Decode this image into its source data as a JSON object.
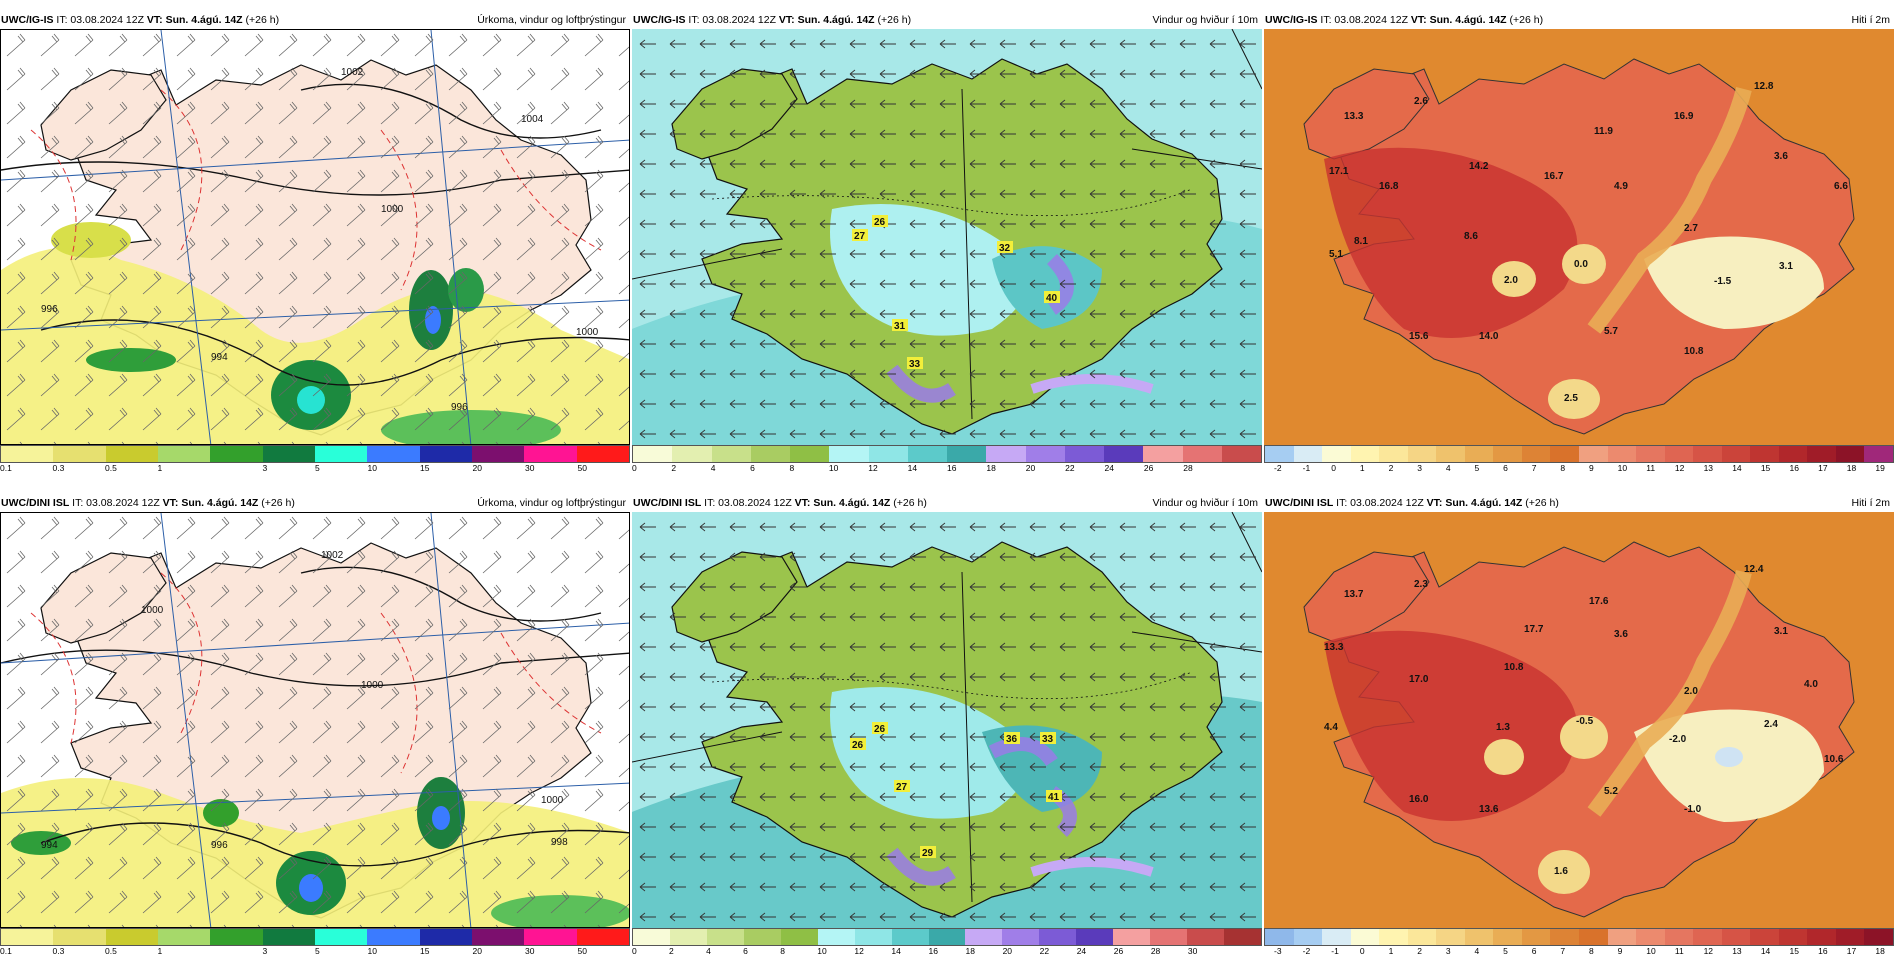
{
  "panels": [
    {
      "id": "p1",
      "kind": "precip",
      "model": "UWC/IG-IS",
      "it": "03.08.2024 12Z",
      "vt": "Sun. 4.ágú. 14Z",
      "lead": "(+26 h)",
      "title": "Úrkoma, vindur og loftþrýstingur",
      "isobars": [
        "1002",
        "1000",
        "1004",
        "996",
        "994",
        "996",
        "1000"
      ],
      "scale": {
        "labels": [
          "0.1",
          "0.3",
          "0.5",
          "1",
          "3",
          "5",
          "10",
          "15",
          "20",
          "30",
          "50"
        ],
        "colors": [
          "#f6f39a",
          "#e6e070",
          "#c9cb2e",
          "#a6d96a",
          "#33a02c",
          "#117a3f",
          "#29ffd9",
          "#3b7bff",
          "#1e2aa8",
          "#7c0f6e",
          "#ff1493",
          "#ff1a1a"
        ]
      }
    },
    {
      "id": "p2",
      "kind": "wind",
      "model": "UWC/IG-IS",
      "it": "03.08.2024 12Z",
      "vt": "Sun. 4.ágú. 14Z",
      "lead": "(+26 h)",
      "title": "Vindur og hviður í 10m",
      "gusts": [
        "26",
        "27",
        "32",
        "31",
        "33",
        "40"
      ],
      "scale": {
        "labels": [
          "0",
          "2",
          "4",
          "6",
          "8",
          "10",
          "12",
          "14",
          "16",
          "18",
          "20",
          "22",
          "24",
          "26",
          "28"
        ],
        "colors": [
          "#f8fbd8",
          "#e3efb0",
          "#c8e08a",
          "#a9cc62",
          "#8fbf45",
          "#b4f5f5",
          "#8fe6e6",
          "#5ccaca",
          "#3aa9a9",
          "#c6a9f5",
          "#a07ee8",
          "#7c5bd6",
          "#5a3bbb",
          "#f4a0a0",
          "#e57373",
          "#c94c4c"
        ]
      }
    },
    {
      "id": "p3",
      "kind": "temp",
      "model": "UWC/IG-IS",
      "it": "03.08.2024 12Z",
      "vt": "Sun. 4.ágú. 14Z",
      "lead": "(+26 h)",
      "title": "Hiti í 2m",
      "temps": [
        "13.3",
        "2.6",
        "12.8",
        "17.1",
        "14.2",
        "16.9",
        "11.9",
        "16.7",
        "16.8",
        "4.9",
        "3.6",
        "6.6",
        "8.1",
        "8.6",
        "2.7",
        "5.1",
        "2.0",
        "0.0",
        "3.1",
        "-1.5",
        "15.6",
        "14.0",
        "5.7",
        "10.8",
        "2.5"
      ],
      "scale": {
        "labels": [
          "-2",
          "-1",
          "0",
          "1",
          "2",
          "3",
          "4",
          "5",
          "6",
          "7",
          "8",
          "9",
          "10",
          "11",
          "12",
          "13",
          "14",
          "15",
          "16",
          "17",
          "18",
          "19"
        ],
        "colors": [
          "#a6cdf2",
          "#d9ecf5",
          "#fbfbd5",
          "#fff4b0",
          "#fbe79a",
          "#f5d585",
          "#efc26c",
          "#e9ad55",
          "#e39843",
          "#dd8335",
          "#d9722b",
          "#f0a080",
          "#ec8a6e",
          "#e57660",
          "#df6552",
          "#d65446",
          "#cb443a",
          "#bf3531",
          "#b1272b",
          "#a01c28",
          "#8c1327",
          "#a0287a"
        ]
      }
    },
    {
      "id": "p4",
      "kind": "precip",
      "model": "UWC/DINI ISL",
      "it": "03.08.2024 12Z",
      "vt": "Sun. 4.ágú. 14Z",
      "lead": "(+26 h)",
      "title": "Úrkoma, vindur og loftþrýstingur",
      "isobars": [
        "1002",
        "1000",
        "1000",
        "994",
        "996",
        "998",
        "1000"
      ],
      "scale": {
        "labels": [
          "0.1",
          "0.3",
          "0.5",
          "1",
          "3",
          "5",
          "10",
          "15",
          "20",
          "30",
          "50"
        ],
        "colors": [
          "#f6f39a",
          "#e6e070",
          "#c9cb2e",
          "#a6d96a",
          "#33a02c",
          "#117a3f",
          "#29ffd9",
          "#3b7bff",
          "#1e2aa8",
          "#7c0f6e",
          "#ff1493",
          "#ff1a1a"
        ]
      }
    },
    {
      "id": "p5",
      "kind": "wind",
      "model": "UWC/DINI ISL",
      "it": "03.08.2024 12Z",
      "vt": "Sun. 4.ágú. 14Z",
      "lead": "(+26 h)",
      "title": "Vindur og hviður í 10m",
      "gusts": [
        "26",
        "26",
        "36",
        "33",
        "27",
        "41",
        "29"
      ],
      "scale": {
        "labels": [
          "0",
          "2",
          "4",
          "6",
          "8",
          "10",
          "12",
          "14",
          "16",
          "18",
          "20",
          "22",
          "24",
          "26",
          "28",
          "30"
        ],
        "colors": [
          "#f8fbd8",
          "#e3efb0",
          "#c8e08a",
          "#a9cc62",
          "#8fbf45",
          "#b4f5f5",
          "#8fe6e6",
          "#5ccaca",
          "#3aa9a9",
          "#c6a9f5",
          "#a07ee8",
          "#7c5bd6",
          "#5a3bbb",
          "#f4a0a0",
          "#e57373",
          "#c94c4c",
          "#a63232"
        ]
      }
    },
    {
      "id": "p6",
      "kind": "temp",
      "model": "UWC/DINI ISL",
      "it": "03.08.2024 12Z",
      "vt": "Sun. 4.ágú. 14Z",
      "lead": "(+26 h)",
      "title": "Hiti í 2m",
      "temps": [
        "13.7",
        "2.3",
        "12.4",
        "17.6",
        "13.3",
        "17.7",
        "3.6",
        "3.1",
        "17.0",
        "10.8",
        "2.0",
        "4.0",
        "4.4",
        "1.3",
        "-0.5",
        "2.4",
        "-2.0",
        "10.6",
        "16.0",
        "13.6",
        "5.2",
        "-1.0",
        "1.6"
      ],
      "scale": {
        "labels": [
          "-3",
          "-2",
          "-1",
          "0",
          "1",
          "2",
          "3",
          "4",
          "5",
          "6",
          "7",
          "8",
          "9",
          "10",
          "11",
          "12",
          "13",
          "14",
          "15",
          "16",
          "17",
          "18"
        ],
        "colors": [
          "#8fb8ea",
          "#a6cdf2",
          "#d9ecf5",
          "#fbfbd5",
          "#fff4b0",
          "#fbe79a",
          "#f5d585",
          "#efc26c",
          "#e9ad55",
          "#e39843",
          "#dd8335",
          "#d9722b",
          "#f0a080",
          "#ec8a6e",
          "#e57660",
          "#df6552",
          "#d65446",
          "#cb443a",
          "#bf3531",
          "#b1272b",
          "#a01c28",
          "#8c1327"
        ]
      }
    }
  ]
}
